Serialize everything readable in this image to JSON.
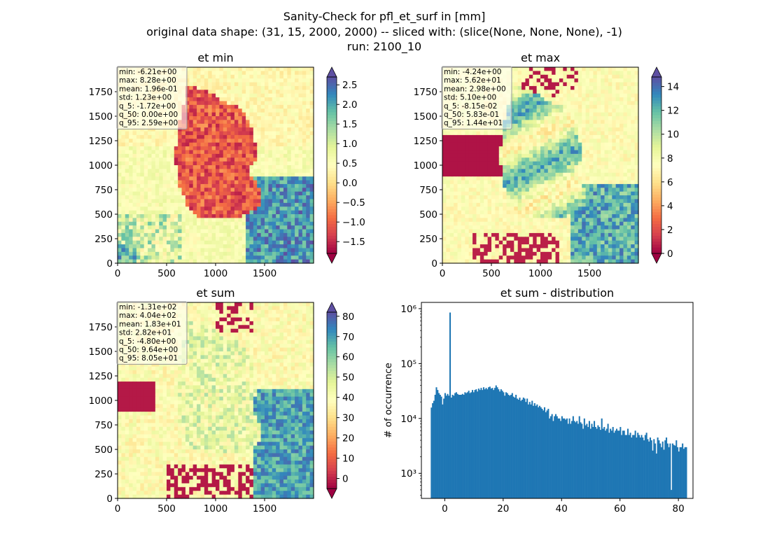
{
  "figure": {
    "title_lines": [
      "Sanity-Check for pfl_et_surf in [mm]",
      "original data shape: (31, 15, 2000, 2000) -- sliced with: (slice(None, None, None), -1)",
      "run: 2100_10"
    ]
  },
  "colors": {
    "spectral": [
      "#9e0142",
      "#d53e4f",
      "#f46d43",
      "#fdae61",
      "#fee08b",
      "#ffffbf",
      "#e6f598",
      "#abdda4",
      "#66c2a5",
      "#3288bd",
      "#5e4fa2"
    ],
    "histogram_bar": "#1f77b4",
    "map_yellow": "#ffffbf",
    "map_red": "#9e0142",
    "map_blue": "#5e4fa2"
  },
  "chart_data": [
    {
      "type": "heatmap",
      "title": "et min",
      "xlim": [
        0,
        2000
      ],
      "ylim": [
        0,
        2000
      ],
      "xticks": [
        "0",
        "500",
        "1000",
        "1500"
      ],
      "yticks": [
        "0",
        "250",
        "500",
        "750",
        "1000",
        "1250",
        "1500",
        "1750"
      ],
      "colorbar": {
        "min": -1.8,
        "max": 2.7,
        "ticks": [
          "2.5",
          "2.0",
          "1.5",
          "1.0",
          "0.5",
          "0.0",
          "−0.5",
          "−1.0",
          "−1.5"
        ],
        "tick_values": [
          2.5,
          2.0,
          1.5,
          1.0,
          0.5,
          0.0,
          -0.5,
          -1.0,
          -1.5
        ],
        "extend": "both"
      },
      "stats": [
        "min: -6.21e+00",
        "max: 8.28e+00",
        "mean: 1.96e-01",
        "std: 1.23e+00",
        "q_5: -1.72e+00",
        "q_50: 0.00e+00",
        "q_95: 2.59e+00"
      ]
    },
    {
      "type": "heatmap",
      "title": "et max",
      "xlim": [
        0,
        2000
      ],
      "ylim": [
        0,
        2000
      ],
      "xticks": [
        "0",
        "500",
        "1000",
        "1500"
      ],
      "yticks": [
        "0",
        "250",
        "500",
        "750",
        "1000",
        "1250",
        "1500",
        "1750"
      ],
      "colorbar": {
        "min": 0,
        "max": 14.8,
        "ticks": [
          "14",
          "12",
          "10",
          "8",
          "6",
          "4",
          "2",
          "0"
        ],
        "tick_values": [
          14,
          12,
          10,
          8,
          6,
          4,
          2,
          0
        ],
        "extend": "both"
      },
      "stats": [
        "min: -4.24e+00",
        "max: 5.62e+01",
        "mean: 2.98e+00",
        "std: 5.10e+00",
        "q_5: -8.15e-02",
        "q_50: 5.83e-01",
        "q_95: 1.44e+01"
      ]
    },
    {
      "type": "heatmap",
      "title": "et sum",
      "xlim": [
        0,
        2000
      ],
      "ylim": [
        0,
        2000
      ],
      "xticks": [
        "0",
        "500",
        "1000",
        "1500"
      ],
      "yticks": [
        "0",
        "250",
        "500",
        "750",
        "1000",
        "1250",
        "1500",
        "1750"
      ],
      "colorbar": {
        "min": -5,
        "max": 82,
        "ticks": [
          "80",
          "70",
          "60",
          "50",
          "40",
          "30",
          "20",
          "10",
          "0"
        ],
        "tick_values": [
          80,
          70,
          60,
          50,
          40,
          30,
          20,
          10,
          0
        ],
        "extend": "both"
      },
      "stats": [
        "min: -1.31e+02",
        "max: 4.04e+02",
        "mean: 1.83e+01",
        "std: 2.82e+01",
        "q_5: -4.80e+00",
        "q_50: 9.64e+00",
        "q_95: 8.05e+01"
      ]
    },
    {
      "type": "bar",
      "title": "et sum - distribution",
      "ylabel": "# of occurrence",
      "xlim": [
        -8,
        85
      ],
      "yscale": "log",
      "ylim": [
        350,
        1300000
      ],
      "xticks": [
        "0",
        "20",
        "40",
        "60",
        "80"
      ],
      "xtick_values": [
        0,
        20,
        40,
        60,
        80
      ],
      "yticks": [
        "10³",
        "10⁴",
        "10⁵",
        "10⁶"
      ],
      "ytick_values": [
        1000,
        10000,
        100000,
        1000000
      ],
      "bin_start": -4.8,
      "bin_width": 0.4257,
      "values": [
        15800,
        19000,
        21000,
        27000,
        37000,
        33000,
        29000,
        27000,
        25000,
        18000,
        23000,
        29000,
        26000,
        28000,
        26000,
        850000,
        24000,
        27000,
        26000,
        29000,
        30000,
        28000,
        27000,
        27000,
        27000,
        28000,
        27000,
        30000,
        29000,
        30000,
        32000,
        29000,
        30000,
        33000,
        30000,
        33000,
        34000,
        31000,
        35000,
        33000,
        36000,
        33000,
        37000,
        34000,
        36000,
        34000,
        37000,
        38000,
        35000,
        36000,
        33000,
        36000,
        40000,
        37000,
        34000,
        31000,
        34000,
        32000,
        30000,
        26000,
        30000,
        29000,
        27000,
        26000,
        27000,
        29000,
        25000,
        24000,
        27000,
        23000,
        22000,
        24000,
        21000,
        22000,
        24000,
        23000,
        20000,
        23000,
        18000,
        20000,
        18000,
        21000,
        17000,
        19000,
        17000,
        18000,
        16000,
        17000,
        16000,
        15000,
        14000,
        16000,
        13000,
        14000,
        15000,
        10000,
        11000,
        12000,
        9000,
        11000,
        12000,
        11000,
        10000,
        10000,
        9000,
        11000,
        10000,
        10000,
        9500,
        10000,
        8000,
        10000,
        8000,
        9000,
        11000,
        9000,
        8500,
        9000,
        8000,
        11000,
        8500,
        8000,
        6500,
        10000,
        7500,
        8000,
        7000,
        9000,
        6500,
        8000,
        7000,
        9000,
        7000,
        6500,
        7500,
        7000,
        6200,
        10000,
        6500,
        7000,
        6000,
        6500,
        8000,
        5500,
        6500,
        6000,
        7000,
        5500,
        6000,
        6500,
        6000,
        6000,
        7000,
        5000,
        6000,
        6000,
        5000,
        5000,
        6500,
        5000,
        5500,
        4500,
        5000,
        5000,
        6000,
        4500,
        5500,
        5000,
        4500,
        5000,
        4500,
        4000,
        5000,
        5500,
        4200,
        3800,
        4500,
        4000,
        2600,
        4200,
        3500,
        2300,
        4500,
        4000,
        3500,
        3000,
        3800,
        2700,
        4000,
        4500,
        3500,
        3000,
        3500,
        500,
        3500,
        3300,
        3200,
        4000,
        3000,
        2500,
        3000,
        3000,
        3500,
        2800,
        3000,
        3000
      ]
    }
  ]
}
